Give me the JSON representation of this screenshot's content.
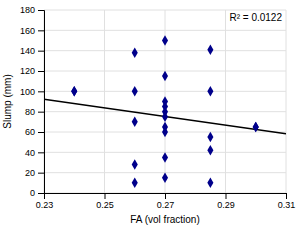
{
  "chart_data": {
    "type": "scatter",
    "x_label": "FA (vol fraction)",
    "y_label": "Slump (mm)",
    "annotations": [
      "R² = 0.0122"
    ],
    "series": [
      {
        "type": "scatter",
        "color": "#00008B",
        "marker": "diamond",
        "x": [
          0.24,
          0.24,
          0.26,
          0.26,
          0.26,
          0.26,
          0.26,
          0.27,
          0.27,
          0.27,
          0.27,
          0.27,
          0.27,
          0.27,
          0.27,
          0.27,
          0.27,
          0.285,
          0.285,
          0.285,
          0.285,
          0.285,
          0.3,
          0.3
        ],
        "values": [
          100,
          100,
          138,
          100,
          70,
          28,
          10,
          150,
          115,
          90,
          85,
          80,
          75,
          65,
          60,
          35,
          15,
          141,
          100,
          55,
          42,
          10,
          65,
          65
        ]
      },
      {
        "type": "line",
        "color": "#000000",
        "line_style": "solid",
        "x": [
          0.23,
          0.31
        ],
        "values": [
          92.186,
          58.199
        ]
      }
    ],
    "xlim": [
      0.23,
      0.31
    ],
    "ylim": [
      0,
      180
    ],
    "xticks": [
      0.23,
      0.25,
      0.27,
      0.29,
      0.31
    ],
    "yticks": [
      0,
      20,
      40,
      60,
      80,
      100,
      120,
      140,
      160,
      180
    ],
    "grid": true
  }
}
